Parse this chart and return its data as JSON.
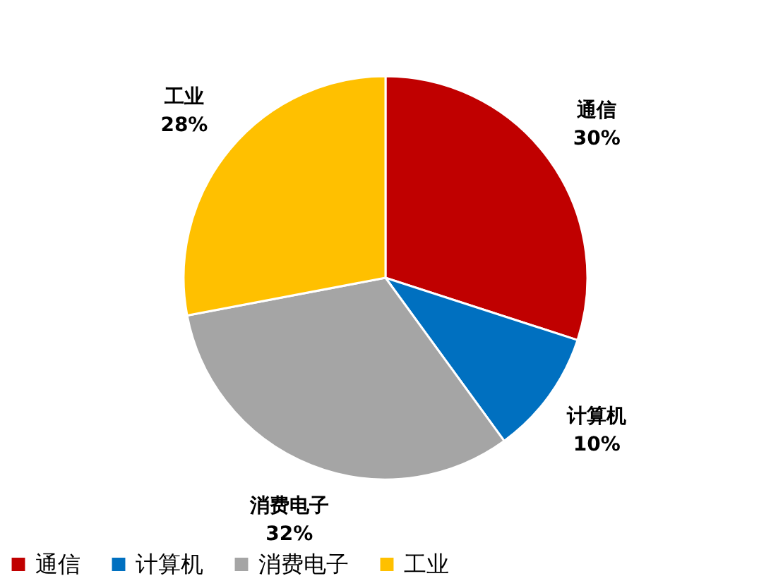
{
  "chart_data": {
    "type": "pie",
    "categories": [
      "通信",
      "计算机",
      "消费电子",
      "工业"
    ],
    "values": [
      30,
      10,
      32,
      28
    ],
    "colors": [
      "#c00000",
      "#0070c0",
      "#a5a5a5",
      "#ffc000"
    ],
    "value_labels": [
      "30%",
      "10%",
      "32%",
      "28%"
    ],
    "legend": "bottom"
  }
}
